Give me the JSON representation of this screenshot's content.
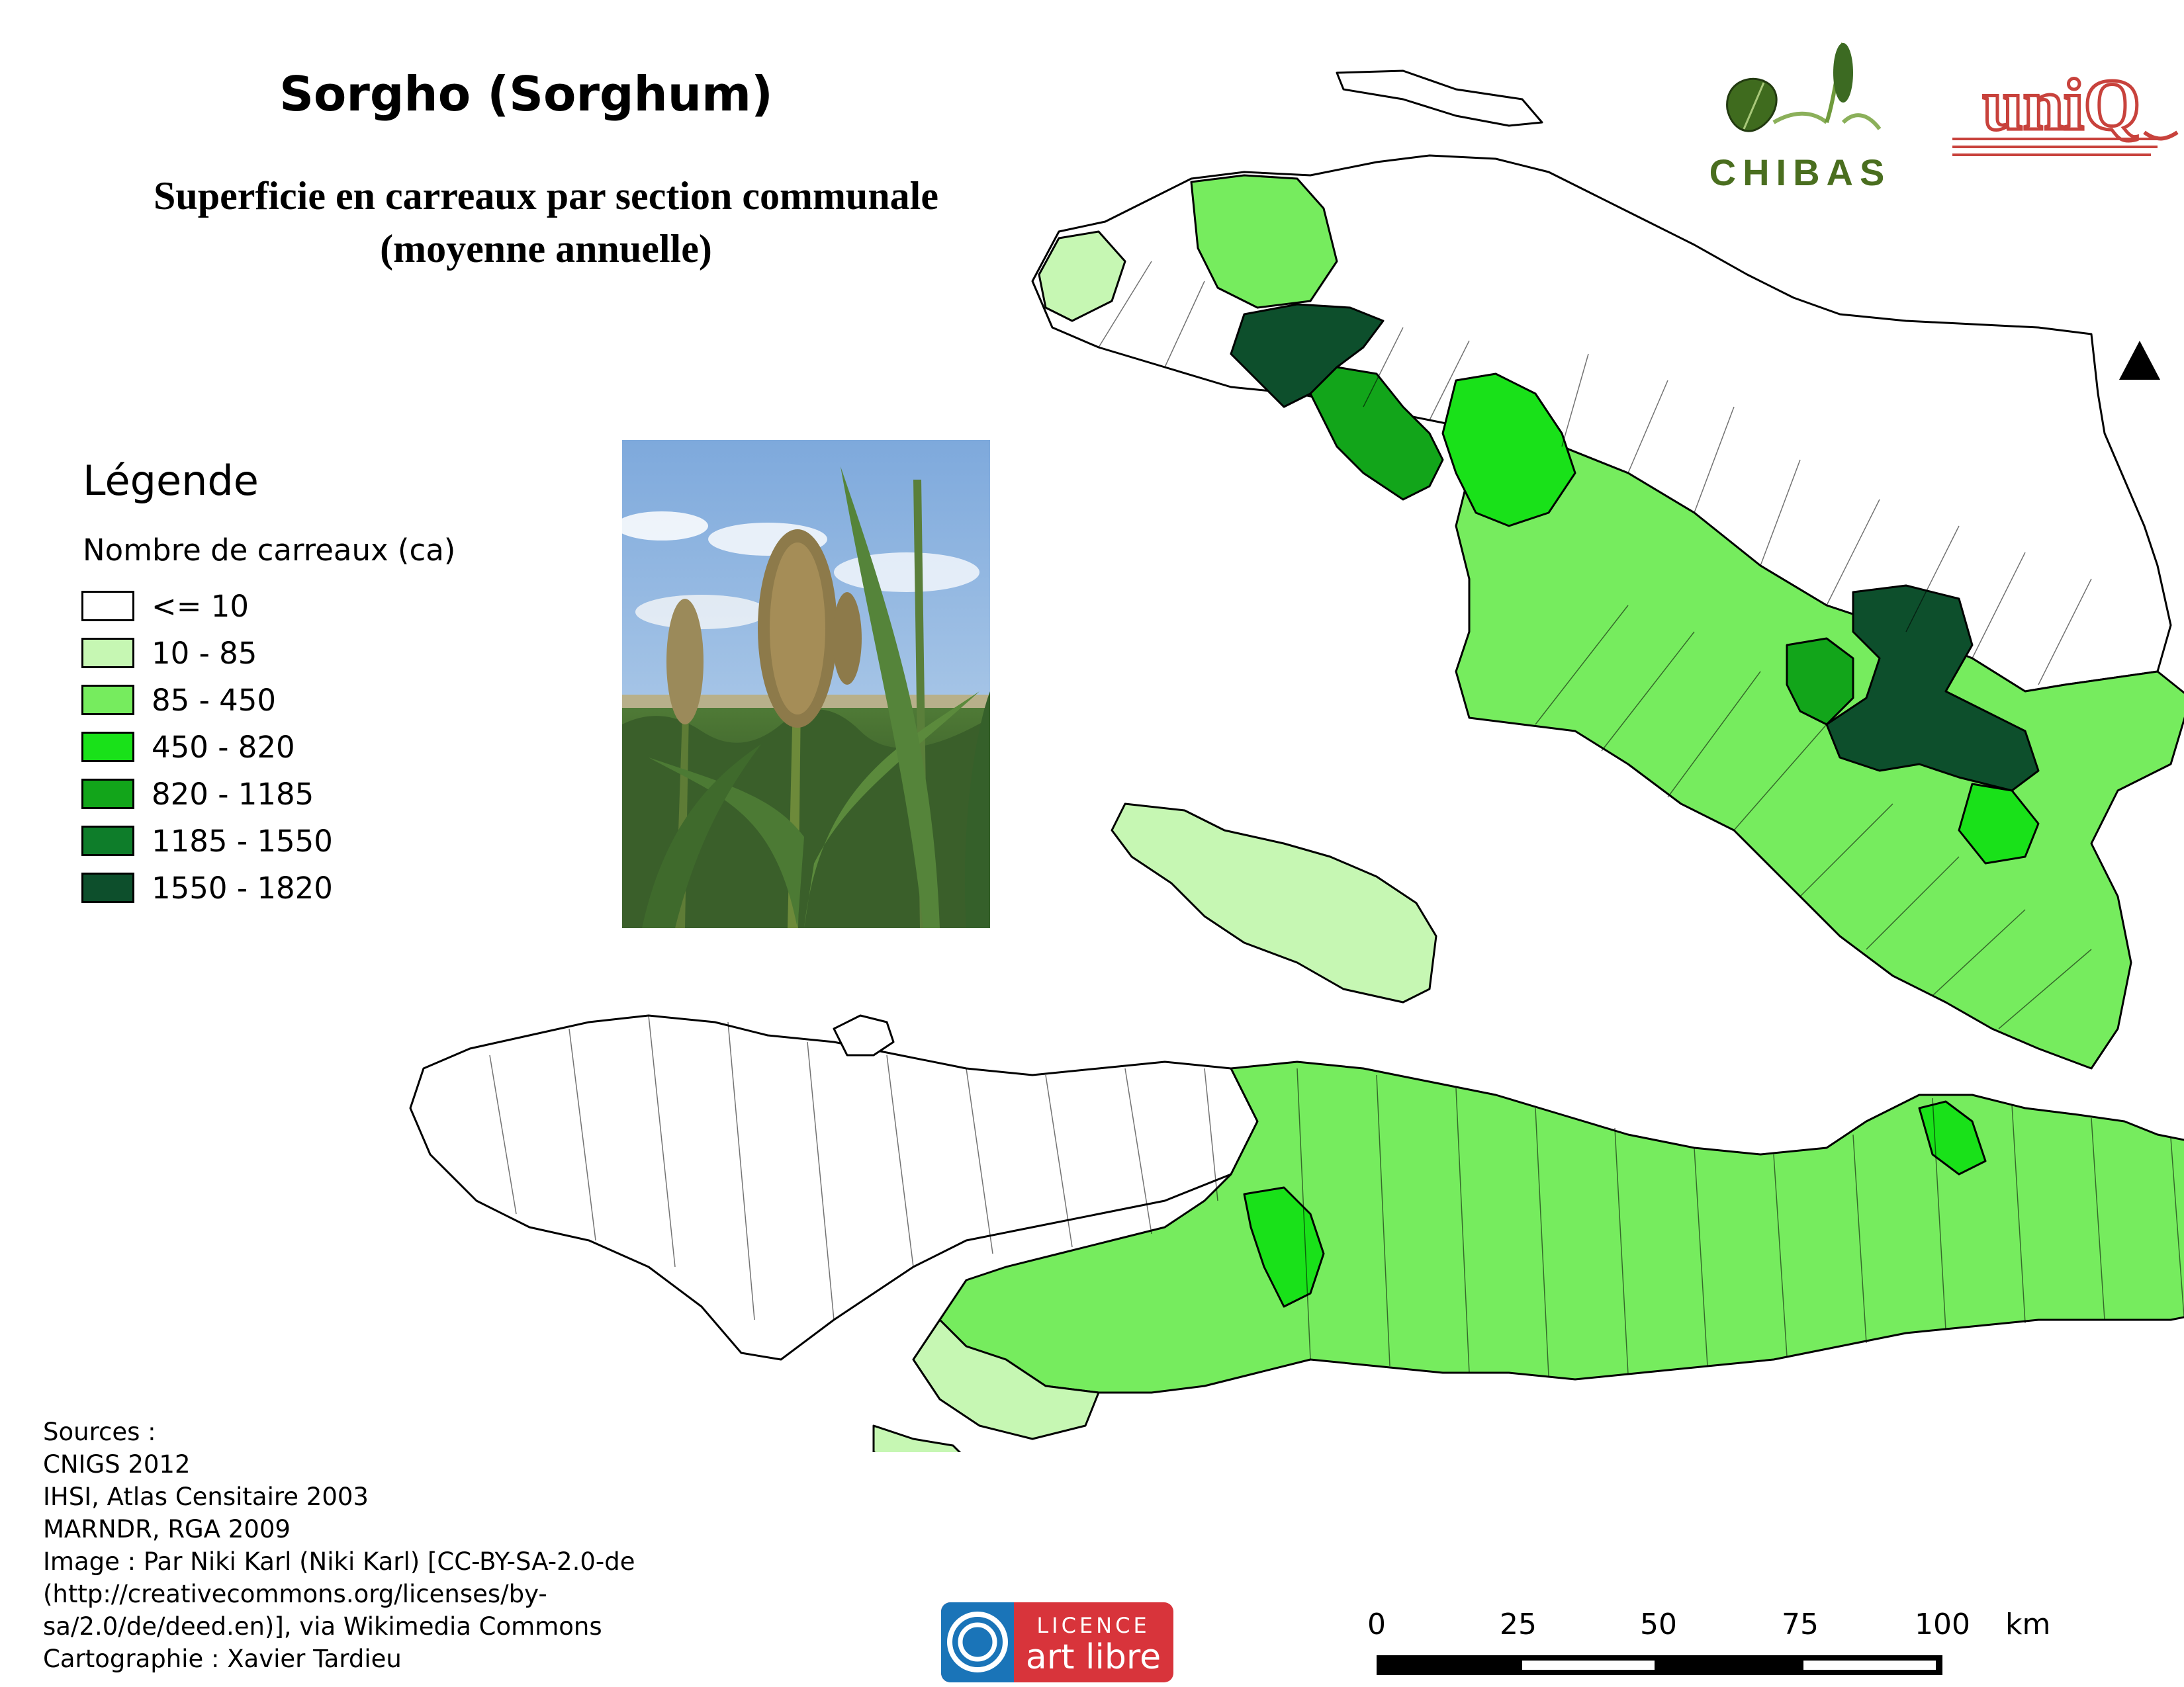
{
  "title": "Sorgho (Sorghum)",
  "subtitle_line1": "Superficie en carreaux par section communale",
  "subtitle_line2": "(moyenne annuelle)",
  "legend": {
    "title": "Légende",
    "subtitle": "Nombre de carreaux (ca)",
    "classes": [
      {
        "label": "<= 10",
        "color": "#ffffff"
      },
      {
        "label": "10 - 85",
        "color": "#c6f7b3"
      },
      {
        "label": "85 - 450",
        "color": "#76ec5e"
      },
      {
        "label": "450 - 820",
        "color": "#19e119"
      },
      {
        "label": "820 - 1185",
        "color": "#12a51a"
      },
      {
        "label": "1185 - 1550",
        "color": "#0e7d2a"
      },
      {
        "label": "1550 - 1820",
        "color": "#0d4f2c"
      }
    ]
  },
  "sources": [
    "Sources :",
    "CNIGS 2012",
    "IHSI, Atlas Censitaire 2003",
    "MARNDR, RGA 2009",
    "Image : Par Niki Karl (Niki Karl) [CC-BY-SA-2.0-de",
    "(http://creativecommons.org/licenses/by-",
    "sa/2.0/de/deed.en)], via Wikimedia Commons",
    "Cartographie : Xavier Tardieu"
  ],
  "logos": {
    "chibas": "CHIBAS",
    "unio": "uniQ",
    "licence_top": "LICENCE",
    "licence_bottom": "art libre"
  },
  "scale": {
    "ticks": [
      "0",
      "25",
      "50",
      "75",
      "100"
    ],
    "unit": "km"
  }
}
